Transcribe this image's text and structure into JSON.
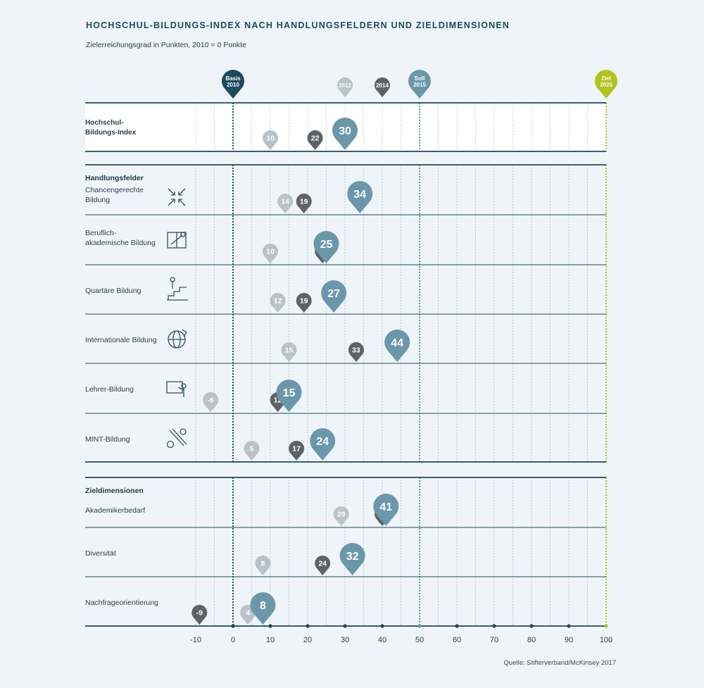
{
  "title": "HOCHSCHUL-BILDUNGS-INDEX NACH HANDLUNGSFELDERN UND ZIELDIMENSIONEN",
  "subtitle": "Zielerreichungsgrad in Punkten, 2010 = 0 Punkte",
  "source": "Quelle: Stifterverband/McKinsey 2017",
  "colors": {
    "basis": "#1d4a5c",
    "pin_2012": "#b9c3c8",
    "pin_2014": "#5f6366",
    "pin_latest": "#6b97aa",
    "ziel": "#b4c21e",
    "row_line": "#1d4a5c",
    "grid": "#9aa6ac"
  },
  "chart_data": {
    "type": "scatter",
    "xlim": [
      -10,
      100
    ],
    "x_ticks": [
      -10,
      0,
      10,
      20,
      30,
      40,
      50,
      60,
      70,
      80,
      90,
      100
    ],
    "x_tick_labels": [
      "-10",
      "0",
      "10",
      "20",
      "30",
      "40",
      "50",
      "60",
      "70",
      "80",
      "90",
      "100"
    ],
    "markers": [
      {
        "year": "2010",
        "label_line1": "Basis",
        "label_line2": "2010",
        "x": 0,
        "style": "basis"
      },
      {
        "year": "2012",
        "label_line1": "2012",
        "label_line2": "",
        "x": 30,
        "style": "pin_2012"
      },
      {
        "year": "2014",
        "label_line1": "2014",
        "label_line2": "",
        "x": 40,
        "style": "pin_2014"
      },
      {
        "year": "2015",
        "label_line1": "Soll",
        "label_line2": "2015",
        "x": 50,
        "style": "pin_latest"
      },
      {
        "year": "2020",
        "label_line1": "Ziel",
        "label_line2": "2020",
        "x": 100,
        "style": "ziel"
      }
    ],
    "series_keys": [
      "2012",
      "2014",
      "2015"
    ],
    "sections": [
      {
        "heading": "",
        "rows": [
          {
            "label": "Hochschul-Bildungs-Index",
            "bold": true,
            "icon": "",
            "values": {
              "2012": 10,
              "2014": 22,
              "2015": 30
            }
          }
        ]
      },
      {
        "heading": "Handlungsfelder",
        "rows": [
          {
            "label": "Chancengerechte Bildung",
            "icon": "arrows-inward-icon",
            "values": {
              "2012": 14,
              "2014": 19,
              "2015": 34
            }
          },
          {
            "label": "Beruflich-akademische Bildung",
            "icon": "book-wrench-icon",
            "values": {
              "2012": 10,
              "2014": 24,
              "2015": 25
            }
          },
          {
            "label": "Quartäre Bildung",
            "icon": "person-steps-icon",
            "values": {
              "2012": 12,
              "2014": 19,
              "2015": 27
            }
          },
          {
            "label": "Internationale Bildung",
            "icon": "globe-arrow-icon",
            "values": {
              "2012": 15,
              "2014": 33,
              "2015": 44
            }
          },
          {
            "label": "Lehrer-Bildung",
            "icon": "teacher-board-icon",
            "values": {
              "2012": -6,
              "2014": 12,
              "2015": 15
            }
          },
          {
            "label": "MINT-Bildung",
            "icon": "gear-ruler-icon",
            "values": {
              "2012": 5,
              "2014": 17,
              "2015": 24
            }
          }
        ]
      },
      {
        "heading": "Zieldimensionen",
        "rows": [
          {
            "label": "Akademikerbedarf",
            "icon": "",
            "values": {
              "2012": 29,
              "2014": 40,
              "2015": 41
            }
          },
          {
            "label": "Diversität",
            "icon": "",
            "values": {
              "2012": 8,
              "2014": 24,
              "2015": 32
            }
          },
          {
            "label": "Nachfrageorientierung",
            "icon": "",
            "values": {
              "2012": 4,
              "2014": -9,
              "2015": 8
            }
          }
        ]
      }
    ]
  }
}
